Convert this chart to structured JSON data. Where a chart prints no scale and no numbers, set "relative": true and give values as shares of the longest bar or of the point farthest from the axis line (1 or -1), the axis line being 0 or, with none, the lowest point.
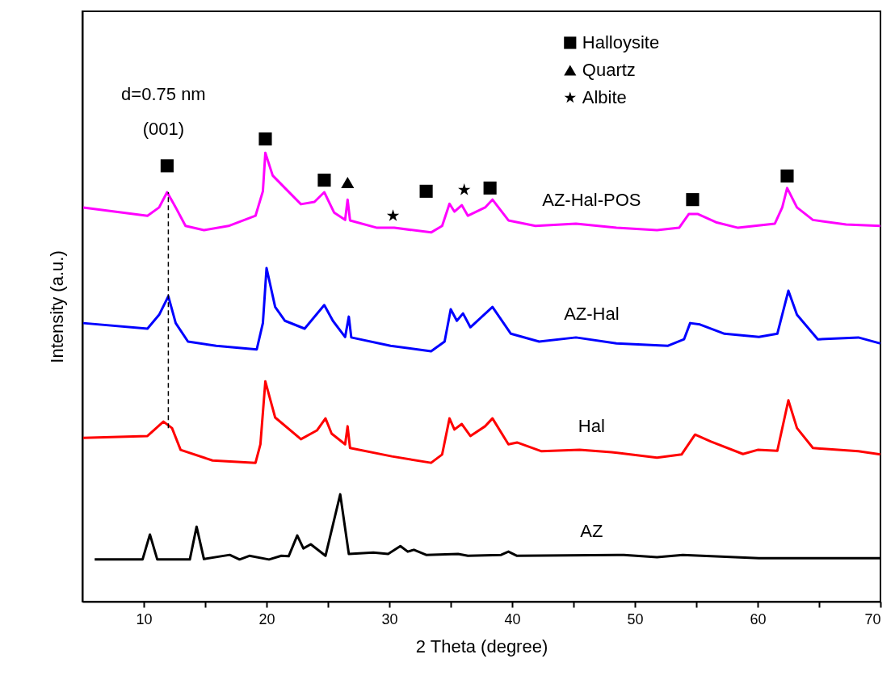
{
  "chart_data": {
    "type": "line",
    "relative": true,
    "xlabel": "2 Theta (degree)",
    "ylabel": "Intensity (a.u.)",
    "xlim": [
      5,
      70
    ],
    "xticks": [
      10,
      {
        "value": 15,
        "label": null
      },
      20,
      {
        "value": 25,
        "label": null
      },
      30,
      {
        "value": 35,
        "label": null
      },
      40,
      {
        "value": 45,
        "label": null
      },
      50,
      {
        "value": 55,
        "label": null
      },
      60,
      {
        "value": 65,
        "label": null
      },
      70
    ],
    "legend": "top right",
    "series": [
      {
        "name": "AZ-Hal-POS",
        "color": "#ff00ff",
        "x": [
          5.07,
          10.3,
          11.25,
          11.9,
          12.6,
          13.4,
          14.9,
          16.9,
          19.1,
          19.7,
          19.9,
          20.5,
          21.5,
          22.8,
          23.9,
          24.7,
          25.5,
          26.4,
          26.6,
          26.8,
          29.0,
          30.4,
          33.4,
          34.3,
          34.9,
          35.3,
          35.9,
          36.4,
          37.8,
          38.4,
          39.7,
          41.9,
          45.2,
          48.5,
          51.8,
          53.6,
          54.4,
          55.1,
          56.6,
          58.4,
          61.4,
          62.0,
          62.4,
          63.2,
          64.5,
          67.2,
          70.0
        ],
        "values": [
          0.852,
          0.834,
          0.852,
          0.885,
          0.852,
          0.812,
          0.803,
          0.812,
          0.834,
          0.887,
          0.97,
          0.921,
          0.894,
          0.859,
          0.864,
          0.885,
          0.841,
          0.825,
          0.869,
          0.824,
          0.808,
          0.808,
          0.798,
          0.812,
          0.86,
          0.843,
          0.857,
          0.834,
          0.852,
          0.869,
          0.824,
          0.812,
          0.817,
          0.808,
          0.803,
          0.808,
          0.838,
          0.838,
          0.82,
          0.808,
          0.817,
          0.852,
          0.894,
          0.852,
          0.825,
          0.815,
          0.812
        ]
      },
      {
        "name": "AZ-Hal",
        "color": "#0000ff",
        "x": [
          5.07,
          10.3,
          11.25,
          12.0,
          12.6,
          13.6,
          15.9,
          19.2,
          19.7,
          20.0,
          20.7,
          21.5,
          23.1,
          24.7,
          25.4,
          26.4,
          26.7,
          26.9,
          30.1,
          33.4,
          34.5,
          35.0,
          35.5,
          36.0,
          36.6,
          38.4,
          39.9,
          42.2,
          45.2,
          48.5,
          52.7,
          54.0,
          54.5,
          55.3,
          57.3,
          60.1,
          61.6,
          62.5,
          63.2,
          64.9,
          68.2,
          70.0
        ],
        "values": [
          0.602,
          0.59,
          0.62,
          0.66,
          0.602,
          0.562,
          0.553,
          0.545,
          0.602,
          0.721,
          0.637,
          0.607,
          0.59,
          0.641,
          0.607,
          0.572,
          0.616,
          0.571,
          0.553,
          0.541,
          0.562,
          0.632,
          0.607,
          0.623,
          0.593,
          0.637,
          0.579,
          0.562,
          0.571,
          0.558,
          0.553,
          0.567,
          0.602,
          0.599,
          0.579,
          0.572,
          0.579,
          0.672,
          0.62,
          0.567,
          0.571,
          0.558
        ]
      },
      {
        "name": "Hal",
        "color": "#ff0000",
        "x": [
          5.07,
          10.3,
          11.6,
          12.3,
          13.0,
          15.6,
          19.1,
          19.5,
          19.9,
          20.7,
          22.8,
          24.1,
          24.8,
          25.3,
          26.4,
          26.6,
          26.8,
          30.2,
          33.4,
          34.3,
          34.9,
          35.3,
          35.9,
          36.6,
          37.8,
          38.4,
          39.7,
          40.4,
          42.4,
          45.5,
          48.1,
          51.8,
          53.8,
          54.9,
          56.2,
          58.8,
          60.0,
          61.6,
          62.5,
          63.2,
          64.5,
          68.2,
          70.0
        ],
        "values": [
          0.354,
          0.358,
          0.389,
          0.375,
          0.328,
          0.305,
          0.3,
          0.34,
          0.476,
          0.398,
          0.351,
          0.37,
          0.396,
          0.363,
          0.34,
          0.379,
          0.332,
          0.314,
          0.3,
          0.318,
          0.396,
          0.372,
          0.384,
          0.358,
          0.379,
          0.396,
          0.34,
          0.344,
          0.325,
          0.328,
          0.323,
          0.311,
          0.318,
          0.361,
          0.346,
          0.319,
          0.328,
          0.326,
          0.435,
          0.375,
          0.332,
          0.325,
          0.318
        ]
      },
      {
        "name": "AZ",
        "color": "#000000",
        "x": [
          6.0,
          9.9,
          10.5,
          11.1,
          13.75,
          14.3,
          14.9,
          17.0,
          17.8,
          18.6,
          20.2,
          21.2,
          21.8,
          22.5,
          23.0,
          23.6,
          24.8,
          26.0,
          26.7,
          28.7,
          29.9,
          30.9,
          31.5,
          32.0,
          33.0,
          35.6,
          36.4,
          39.1,
          39.7,
          40.4,
          49.1,
          51.8,
          53.9,
          60.1,
          70.0
        ],
        "values": [
          0.091,
          0.091,
          0.145,
          0.091,
          0.091,
          0.162,
          0.092,
          0.101,
          0.091,
          0.099,
          0.091,
          0.099,
          0.098,
          0.143,
          0.115,
          0.124,
          0.099,
          0.232,
          0.103,
          0.106,
          0.103,
          0.12,
          0.108,
          0.112,
          0.101,
          0.103,
          0.099,
          0.101,
          0.108,
          0.099,
          0.101,
          0.096,
          0.101,
          0.094,
          0.094
        ]
      },
      {
        "name": "Halloysite",
        "type": "scatter",
        "marker": "square",
        "color": "#000000",
        "x": [
          11.9,
          19.9,
          24.7,
          33.0,
          38.2,
          54.7,
          62.4
        ],
        "values": [
          0.942,
          1.0,
          0.911,
          0.887,
          0.894,
          0.869,
          0.92
        ]
      },
      {
        "name": "Quartz",
        "type": "scatter",
        "marker": "triangle",
        "color": "#000000",
        "x": [
          26.6
        ],
        "values": [
          0.906
        ]
      },
      {
        "name": "Albite",
        "type": "scatter",
        "marker": "star",
        "color": "#000000",
        "x": [
          30.3,
          36.1
        ],
        "values": [
          0.834,
          0.89
        ]
      }
    ],
    "ref_lines": [
      {
        "axis": "x",
        "value": 12,
        "line_style": "dashed",
        "color": "#000000"
      }
    ],
    "annotations": [
      "d=0.75 nm",
      "(001)"
    ]
  }
}
